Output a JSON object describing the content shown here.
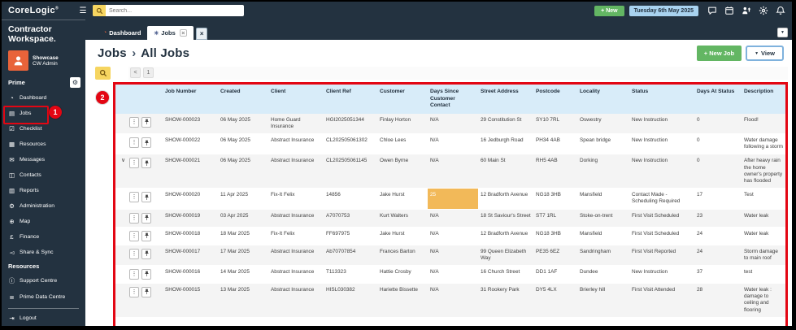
{
  "topbar": {
    "logo": "CoreLogic",
    "logo_mark": "®",
    "menu_icon": "☰",
    "search_placeholder": "Search...",
    "new_button_label": "+ New",
    "date_label": "Tuesday 6th May 2025"
  },
  "brand": "Contractor Workspace.",
  "user": {
    "org": "Showcase",
    "name": "CW Admin"
  },
  "sidebar": {
    "section_prime": "Prime",
    "items": [
      {
        "name": "dashboard",
        "label": "Dashboard",
        "glyph": "◔"
      },
      {
        "name": "jobs",
        "label": "Jobs",
        "glyph": "▤",
        "annotated": true
      },
      {
        "name": "checklist",
        "label": "Checklist",
        "glyph": "☑"
      },
      {
        "name": "resources",
        "label": "Resources",
        "glyph": "▦"
      },
      {
        "name": "messages",
        "label": "Messages",
        "glyph": "✉"
      },
      {
        "name": "contacts",
        "label": "Contacts",
        "glyph": "◫"
      },
      {
        "name": "reports",
        "label": "Reports",
        "glyph": "▥"
      },
      {
        "name": "administration",
        "label": "Administration",
        "glyph": "⚙"
      },
      {
        "name": "map",
        "label": "Map",
        "glyph": "⊕"
      },
      {
        "name": "finance",
        "label": "Finance",
        "glyph": "£"
      },
      {
        "name": "share-sync",
        "label": "Share & Sync",
        "glyph": "◅"
      }
    ],
    "section_resources": "Resources",
    "resource_items": [
      {
        "name": "support-centre",
        "label": "Support Centre",
        "glyph": "ⓘ"
      },
      {
        "name": "prime-data-centre",
        "label": "Prime Data Centre",
        "glyph": "≣"
      }
    ],
    "logout_label": "Logout",
    "logout_glyph": "⇥"
  },
  "tabs": {
    "dashboard_label": "Dashboard",
    "jobs_label": "Jobs",
    "jobs_pin_glyph": "✳",
    "close_glyph": "×",
    "overflow_glyph": "▼"
  },
  "page": {
    "breadcrumb_root": "Jobs",
    "breadcrumb_sep": "›",
    "breadcrumb_current": "All Jobs",
    "new_job_label": "+ New Job",
    "view_label": "View",
    "view_caret": "▼",
    "pager_prev": "<",
    "pager_page": "1"
  },
  "annotations": {
    "step1": "1",
    "step2": "2"
  },
  "table": {
    "columns": [
      {
        "key": "job",
        "label": "Job Number"
      },
      {
        "key": "created",
        "label": "Created"
      },
      {
        "key": "client",
        "label": "Client"
      },
      {
        "key": "client_ref",
        "label": "Client Ref"
      },
      {
        "key": "customer",
        "label": "Customer"
      },
      {
        "key": "days_since",
        "label": "Days Since Customer Contact"
      },
      {
        "key": "street",
        "label": "Street Address"
      },
      {
        "key": "postcode",
        "label": "Postcode"
      },
      {
        "key": "locality",
        "label": "Locality"
      },
      {
        "key": "status",
        "label": "Status"
      },
      {
        "key": "days_at",
        "label": "Days At Status"
      },
      {
        "key": "desc",
        "label": "Description"
      }
    ],
    "rows": [
      {
        "job": "SHOW-000023",
        "created": "06 May 2025",
        "client": "Home Guard Insurance",
        "client_ref": "HGI2025051344",
        "customer": "Finlay Horton",
        "days_since": "N/A",
        "street": "29 Constitution St",
        "postcode": "SY10 7RL",
        "locality": "Oswestry",
        "status": "New Instruction",
        "days_at": "0",
        "desc": "Flood!",
        "expanded": false,
        "days_since_highlight": false
      },
      {
        "job": "SHOW-000022",
        "created": "06 May 2025",
        "client": "Abstract Insurance",
        "client_ref": "CL202505061302",
        "customer": "Chloe Lees",
        "days_since": "N/A",
        "street": "16 Jedburgh Road",
        "postcode": "PH34 4AB",
        "locality": "Spean bridge",
        "status": "New Instruction",
        "days_at": "0",
        "desc": "Water damage following a storm",
        "expanded": false,
        "days_since_highlight": false
      },
      {
        "job": "SHOW-000021",
        "created": "06 May 2025",
        "client": "Abstract Insurance",
        "client_ref": "CL202505061145",
        "customer": "Owen Byrne",
        "days_since": "N/A",
        "street": "60 Main St",
        "postcode": "RH5 4AB",
        "locality": "Dorking",
        "status": "New Instruction",
        "days_at": "0",
        "desc": "After heavy rain the home owner's property has flooded",
        "expanded": true,
        "days_since_highlight": false
      },
      {
        "job": "SHOW-000020",
        "created": "11 Apr 2025",
        "client": "Fix-It Felix",
        "client_ref": "14856",
        "customer": "Jake Hurst",
        "days_since": "25",
        "street": "12 Bradforth Avenue",
        "postcode": "NG18 3HB",
        "locality": "Mansfield",
        "status": "Contact Made - Scheduling Required",
        "days_at": "17",
        "desc": "Test",
        "expanded": false,
        "days_since_highlight": true
      },
      {
        "job": "SHOW-000019",
        "created": "03 Apr 2025",
        "client": "Abstract Insurance",
        "client_ref": "A7070753",
        "customer": "Kurt Walters",
        "days_since": "N/A",
        "street": "18 St Saviour's Street",
        "postcode": "ST7 1RL",
        "locality": "Stoke-on-trent",
        "status": "First Visit Scheduled",
        "days_at": "23",
        "desc": "Water leak",
        "expanded": false,
        "days_since_highlight": false
      },
      {
        "job": "SHOW-000018",
        "created": "18 Mar 2025",
        "client": "Fix-It Felix",
        "client_ref": "FF697975",
        "customer": "Jake Hurst",
        "days_since": "N/A",
        "street": "12 Bradforth Avenue",
        "postcode": "NG18 3HB",
        "locality": "Mansfield",
        "status": "First Visit Scheduled",
        "days_at": "24",
        "desc": "Water leak",
        "expanded": false,
        "days_since_highlight": false
      },
      {
        "job": "SHOW-000017",
        "created": "17 Mar 2025",
        "client": "Abstract Insurance",
        "client_ref": "Ab70707854",
        "customer": "Frances Barton",
        "days_since": "N/A",
        "street": "99 Queen Elizabeth Way",
        "postcode": "PE35 6EZ",
        "locality": "Sandringham",
        "status": "First Visit Reported",
        "days_at": "24",
        "desc": "Storm damage to main roof",
        "expanded": false,
        "days_since_highlight": false
      },
      {
        "job": "SHOW-000016",
        "created": "14 Mar 2025",
        "client": "Abstract Insurance",
        "client_ref": "T113323",
        "customer": "Hattie Crosby",
        "days_since": "N/A",
        "street": "16 Church Street",
        "postcode": "DD1 1AF",
        "locality": "Dundee",
        "status": "New Instruction",
        "days_at": "37",
        "desc": "test",
        "expanded": false,
        "days_since_highlight": false
      },
      {
        "job": "SHOW-000015",
        "created": "13 Mar 2025",
        "client": "Abstract Insurance",
        "client_ref": "HISL030382",
        "customer": "Hariette Bissette",
        "days_since": "N/A",
        "street": "31 Rookery Park",
        "postcode": "DY5 4LX",
        "locality": "Brierley hill",
        "status": "First Visit Attended",
        "days_at": "28",
        "desc": "Water leak : damage to ceiling and flooring",
        "expanded": false,
        "days_since_highlight": false
      }
    ]
  },
  "colors": {
    "navy": "#233240",
    "green": "#63b663",
    "yellow": "#f6d560",
    "header_blue": "#d8ecf9",
    "date_chip_blue": "#a9d3f0",
    "highlight_orange": "#f2b959",
    "annotation_red": "#e30613",
    "avatar_orange": "#e8633a"
  }
}
